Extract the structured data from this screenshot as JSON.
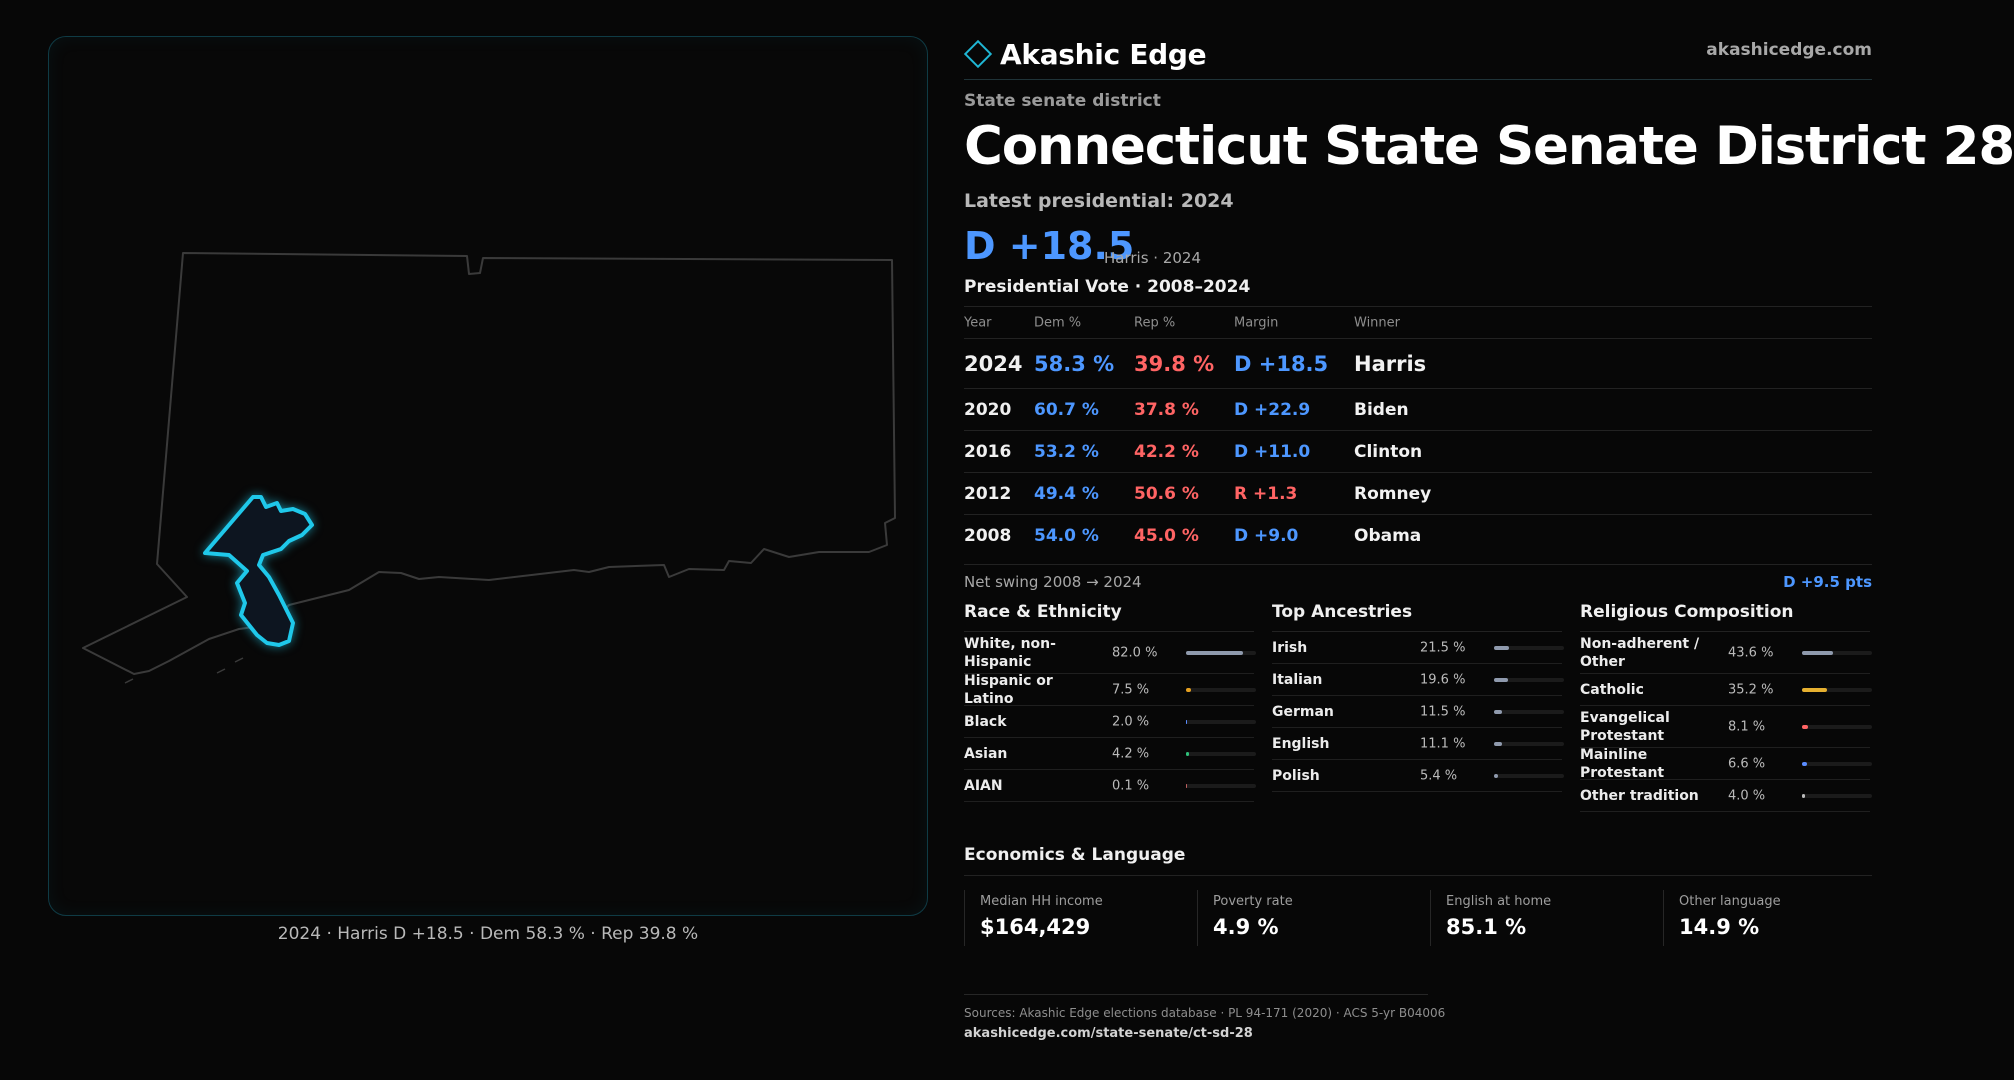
{
  "map": {
    "caption": "2024 · Harris D +18.5 · Dem 58.3 % · Rep 39.8 %",
    "colors": {
      "state_outline": "#3a3a3a",
      "district_outline": "#1fc8ea",
      "district_fill": "#0d1520"
    }
  },
  "header": {
    "brand_name": "Akashic Edge",
    "brand_icon": "diamond-icon",
    "site_url": "akashicedge.com"
  },
  "district": {
    "kind": "State senate district",
    "title": "Connecticut State Senate District 28",
    "latest_label": "Latest presidential: 2024",
    "margin": "D +18.5",
    "margin_sub": "Harris · 2024"
  },
  "presidential": {
    "heading": "Presidential Vote · 2008–2024",
    "columns": [
      "Year",
      "Dem %",
      "Rep %",
      "Margin",
      "Winner"
    ],
    "rows": [
      {
        "year": "2024",
        "dem": "58.3 %",
        "rep": "39.8 %",
        "margin": "D +18.5",
        "winner": "Harris"
      },
      {
        "year": "2020",
        "dem": "60.7 %",
        "rep": "37.8 %",
        "margin": "D +22.9",
        "winner": "Biden"
      },
      {
        "year": "2016",
        "dem": "53.2 %",
        "rep": "42.2 %",
        "margin": "D +11.0",
        "winner": "Clinton"
      },
      {
        "year": "2012",
        "dem": "49.4 %",
        "rep": "50.6 %",
        "margin": "R +1.3",
        "winner": "Romney"
      },
      {
        "year": "2008",
        "dem": "54.0 %",
        "rep": "45.0 %",
        "margin": "D +9.0",
        "winner": "Obama"
      }
    ],
    "swing_label": "Net swing 2008 → 2024",
    "swing_value": "D +9.5 pts"
  },
  "race": {
    "title": "Race & Ethnicity",
    "items": [
      {
        "label": "White, non-Hispanic",
        "value": "82.0 %",
        "pct": 82.0,
        "color": "#8f9aad"
      },
      {
        "label": "Hispanic or Latino",
        "value": "7.5 %",
        "pct": 7.5,
        "color": "#e6a020"
      },
      {
        "label": "Black",
        "value": "2.0 %",
        "pct": 2.0,
        "color": "#5a8cff"
      },
      {
        "label": "Asian",
        "value": "4.2 %",
        "pct": 4.2,
        "color": "#2fc07a"
      },
      {
        "label": "AIAN",
        "value": "0.1 %",
        "pct": 0.1,
        "color": "#c06060"
      }
    ]
  },
  "ancestry": {
    "title": "Top Ancestries",
    "items": [
      {
        "label": "Irish",
        "value": "21.5 %",
        "pct": 21.5,
        "color": "#8f9aad"
      },
      {
        "label": "Italian",
        "value": "19.6 %",
        "pct": 19.6,
        "color": "#8f9aad"
      },
      {
        "label": "German",
        "value": "11.5 %",
        "pct": 11.5,
        "color": "#8f9aad"
      },
      {
        "label": "English",
        "value": "11.1 %",
        "pct": 11.1,
        "color": "#8f9aad"
      },
      {
        "label": "Polish",
        "value": "5.4 %",
        "pct": 5.4,
        "color": "#8f9aad"
      }
    ]
  },
  "religion": {
    "title": "Religious Composition",
    "items": [
      {
        "label": "Non-adherent / Other",
        "value": "43.6 %",
        "pct": 43.6,
        "color": "#8f9aad"
      },
      {
        "label": "Catholic",
        "value": "35.2 %",
        "pct": 35.2,
        "color": "#e6b030"
      },
      {
        "label": "Evangelical Protestant",
        "value": "8.1 %",
        "pct": 8.1,
        "color": "#ff6464"
      },
      {
        "label": "Mainline Protestant",
        "value": "6.6 %",
        "pct": 6.6,
        "color": "#5a8cff"
      },
      {
        "label": "Other tradition",
        "value": "4.0 %",
        "pct": 4.0,
        "color": "#bbbbbb"
      }
    ]
  },
  "economics": {
    "title": "Economics & Language",
    "items": [
      {
        "label": "Median HH income",
        "value": "$164,429"
      },
      {
        "label": "Poverty rate",
        "value": "4.9 %"
      },
      {
        "label": "English at home",
        "value": "85.1 %"
      },
      {
        "label": "Other language",
        "value": "14.9 %"
      }
    ]
  },
  "footer": {
    "sources": "Sources: Akashic Edge elections database · PL 94-171 (2020) · ACS 5-yr B04006",
    "url": "akashicedge.com/state-senate/ct-sd-28"
  }
}
